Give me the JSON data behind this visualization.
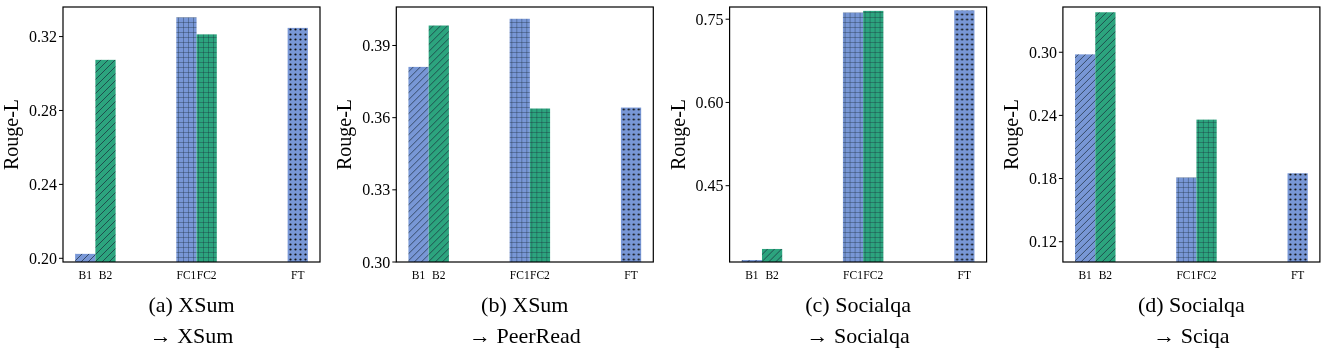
{
  "chart_data": [
    {
      "type": "bar",
      "title": "(a) XSum",
      "subtitle": "→ XSum",
      "ylabel": "Rouge-L",
      "categories": [
        "B1",
        "B2",
        "FC1",
        "FC2",
        "FT"
      ],
      "values": [
        0.2024,
        0.3074,
        0.3304,
        0.3212,
        0.3247
      ],
      "colors": [
        "#7897d6",
        "#2ca47e",
        "#7897d6",
        "#2ca47e",
        "#7897d6"
      ],
      "ylim": [
        0.198,
        0.336
      ],
      "yticks": [
        {
          "value": 0.2,
          "label": "0.20"
        },
        0.24,
        0.28,
        0.32
      ]
    },
    {
      "type": "bar",
      "title": "(b) XSum",
      "subtitle": "→ PeerRead",
      "ylabel": "Rouge-L",
      "categories": [
        "B1",
        "B2",
        "FC1",
        "FC2",
        "FT"
      ],
      "values": [
        0.3811,
        0.3983,
        0.4011,
        0.3638,
        0.3642
      ],
      "colors": [
        "#7897d6",
        "#2ca47e",
        "#7897d6",
        "#2ca47e",
        "#7897d6"
      ],
      "ylim": [
        0.3,
        0.406
      ],
      "yticks": [
        {
          "value": 0.3,
          "label": "0.30"
        },
        0.33,
        0.36,
        0.39
      ]
    },
    {
      "type": "bar",
      "title": "(c) Socialqa",
      "subtitle": "→ Socialqa",
      "ylabel": "Rouge-L",
      "categories": [
        "B1",
        "B2",
        "FC1",
        "FC2",
        "FT"
      ],
      "values": [
        0.316,
        0.336,
        0.762,
        0.765,
        0.766
      ],
      "colors": [
        "#7897d6",
        "#2ca47e",
        "#7897d6",
        "#2ca47e",
        "#7897d6"
      ],
      "ylim": [
        0.3125,
        0.772
      ],
      "yticks": [
        0.45,
        {
          "value": 0.6,
          "label": "0.60"
        },
        0.75
      ]
    },
    {
      "type": "bar",
      "title": "(d) Socialqa",
      "subtitle": "→ Sciqa",
      "ylabel": "Rouge-L",
      "categories": [
        "B1",
        "B2",
        "FC1",
        "FC2",
        "FT"
      ],
      "values": [
        0.298,
        0.338,
        0.181,
        0.236,
        0.185
      ],
      "colors": [
        "#7897d6",
        "#2ca47e",
        "#7897d6",
        "#2ca47e",
        "#7897d6"
      ],
      "ylim": [
        0.1007,
        0.343
      ],
      "yticks": [
        0.12,
        0.18,
        0.24,
        {
          "value": 0.3,
          "label": "0.30"
        }
      ]
    }
  ]
}
